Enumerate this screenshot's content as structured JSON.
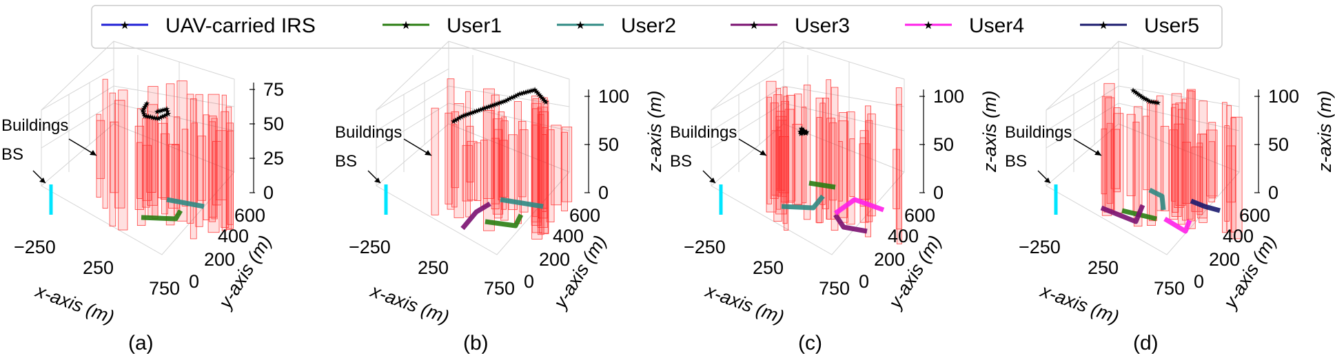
{
  "legend": {
    "placement": "top-center",
    "entries": [
      {
        "label": "UAV-carried IRS",
        "color": "#1f1fd6"
      },
      {
        "label": "User1",
        "color": "#2a7d12"
      },
      {
        "label": "User2",
        "color": "#2f8a83"
      },
      {
        "label": "User3",
        "color": "#7a1070"
      },
      {
        "label": "User4",
        "color": "#ff1fe8"
      },
      {
        "label": "User5",
        "color": "#1a1a6e"
      }
    ]
  },
  "chart_data": [
    {
      "type": "scatter",
      "panel": "(a)",
      "xlabel": "x-axis (m)",
      "ylabel": "y-axis (m)",
      "zlabel": "",
      "x_ticks": [
        "−250",
        "250",
        "750"
      ],
      "y_ticks": [
        "0",
        "200",
        "400",
        "600"
      ],
      "z_ticks": [
        "0",
        "25",
        "50",
        "75"
      ],
      "xlim": [
        -250,
        750
      ],
      "ylim": [
        0,
        600
      ],
      "zlim": [
        0,
        90
      ],
      "annotations": [
        "Buildings",
        "BS"
      ],
      "uav_trajectory": [
        [
          260,
          250,
          70
        ],
        [
          300,
          280,
          82
        ],
        [
          350,
          320,
          85
        ],
        [
          380,
          350,
          88
        ]
      ],
      "users": [
        {
          "name": "User1",
          "path": [
            [
              330,
              180,
              0
            ],
            [
              470,
              180,
              0
            ],
            [
              470,
              250,
              0
            ]
          ]
        },
        {
          "name": "User2",
          "path": [
            [
              560,
              420,
              0
            ],
            [
              640,
              420,
              0
            ]
          ]
        }
      ]
    },
    {
      "type": "scatter",
      "panel": "(b)",
      "xlabel": "x-axis (m)",
      "ylabel": "y-axis (m)",
      "zlabel": "z-axis (m)",
      "x_ticks": [
        "−250",
        "250",
        "750"
      ],
      "y_ticks": [
        "0",
        "200",
        "400",
        "600"
      ],
      "z_ticks": [
        "0",
        "50",
        "100"
      ],
      "xlim": [
        -250,
        750
      ],
      "ylim": [
        0,
        600
      ],
      "zlim": [
        0,
        110
      ],
      "annotations": [
        "Buildings",
        "BS"
      ],
      "uav_trajectory": [
        [
          150,
          300,
          70
        ],
        [
          300,
          380,
          85
        ],
        [
          450,
          450,
          95
        ],
        [
          600,
          520,
          100
        ]
      ],
      "users": [
        {
          "name": "User1",
          "path": [
            [
              400,
              150,
              0
            ],
            [
              540,
              150,
              0
            ],
            [
              540,
              260,
              0
            ]
          ]
        },
        {
          "name": "User2",
          "path": [
            [
              560,
              420,
              0
            ],
            [
              680,
              420,
              0
            ]
          ]
        },
        {
          "name": "User3",
          "path": [
            [
              280,
              200,
              0
            ],
            [
              400,
              260,
              0
            ],
            [
              450,
              380,
              0
            ]
          ]
        }
      ]
    },
    {
      "type": "scatter",
      "panel": "(c)",
      "xlabel": "x-axis (m)",
      "ylabel": "y-axis (m)",
      "zlabel": "z-axis (m)",
      "x_ticks": [
        "−250",
        "250",
        "750"
      ],
      "y_ticks": [
        "0",
        "200",
        "400",
        "600"
      ],
      "z_ticks": [
        "0",
        "50",
        "100"
      ],
      "xlim": [
        -250,
        750
      ],
      "ylim": [
        0,
        600
      ],
      "zlim": [
        0,
        110
      ],
      "annotations": [
        "Buildings",
        "BS"
      ],
      "uav_trajectory": [
        [
          80,
          300,
          70
        ],
        [
          90,
          310,
          72
        ]
      ],
      "users": [
        {
          "name": "User1",
          "path": [
            [
              250,
              420,
              0
            ],
            [
              370,
              420,
              0
            ]
          ]
        },
        {
          "name": "User2",
          "path": [
            [
              120,
              260,
              0
            ],
            [
              300,
              260,
              0
            ],
            [
              320,
              380,
              0
            ]
          ]
        },
        {
          "name": "User3",
          "path": [
            [
              480,
              130,
              0
            ],
            [
              600,
              130,
              0
            ]
          ]
        },
        {
          "name": "User4",
          "path": [
            [
              480,
              130,
              0
            ],
            [
              500,
              280,
              0
            ],
            [
              650,
              320,
              0
            ]
          ]
        }
      ]
    },
    {
      "type": "scatter",
      "panel": "(d)",
      "xlabel": "x-axis (m)",
      "ylabel": "y-axis (m)",
      "zlabel": "z-axis (m)",
      "x_ticks": [
        "−250",
        "250",
        "750"
      ],
      "y_ticks": [
        "0",
        "200",
        "400",
        "600"
      ],
      "z_ticks": [
        "0",
        "50",
        "100"
      ],
      "xlim": [
        -250,
        750
      ],
      "ylim": [
        0,
        600
      ],
      "zlim": [
        0,
        120
      ],
      "annotations": [
        "Buildings",
        "BS"
      ],
      "uav_trajectory": [
        [
          250,
          480,
          95
        ],
        [
          300,
          460,
          100
        ],
        [
          330,
          440,
          102
        ]
      ],
      "users": [
        {
          "name": "User1",
          "path": [
            [
              300,
              300,
              0
            ],
            [
              440,
              300,
              0
            ]
          ]
        },
        {
          "name": "User2",
          "path": [
            [
              420,
              380,
              0
            ],
            [
              470,
              420,
              0
            ],
            [
              470,
              300,
              0
            ]
          ]
        },
        {
          "name": "User3",
          "path": [
            [
              200,
              280,
              0
            ],
            [
              320,
              280,
              0
            ],
            [
              330,
              420,
              0
            ]
          ]
        },
        {
          "name": "User4",
          "path": [
            [
              440,
              150,
              0
            ],
            [
              560,
              150,
              0
            ],
            [
              560,
              260,
              0
            ]
          ]
        },
        {
          "name": "User5",
          "path": [
            [
              560,
              300,
              0
            ],
            [
              640,
              300,
              0
            ],
            [
              660,
              380,
              0
            ]
          ]
        }
      ]
    }
  ]
}
